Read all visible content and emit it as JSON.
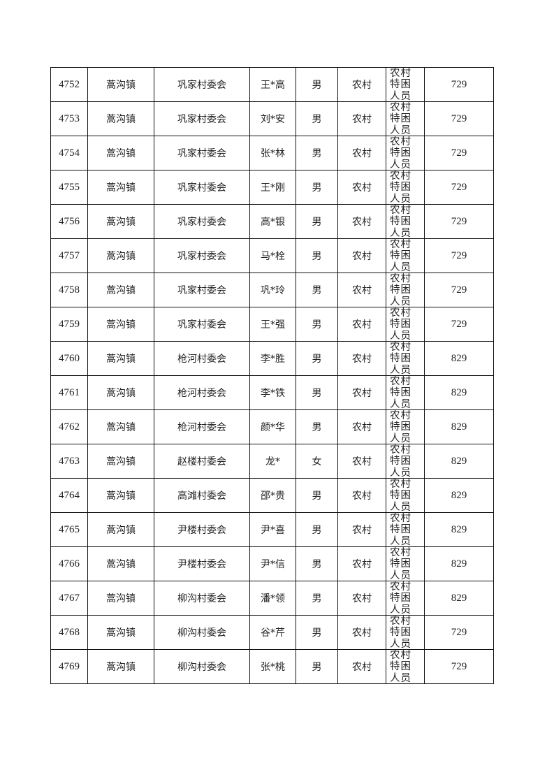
{
  "rows": [
    {
      "id": "4752",
      "town": "蒿沟镇",
      "village": "巩家村委会",
      "name": "王*高",
      "gender": "男",
      "area": "农村",
      "category": "农村特困人员分散供养",
      "amount": "729"
    },
    {
      "id": "4753",
      "town": "蒿沟镇",
      "village": "巩家村委会",
      "name": "刘*安",
      "gender": "男",
      "area": "农村",
      "category": "农村特困人员分散供养",
      "amount": "729"
    },
    {
      "id": "4754",
      "town": "蒿沟镇",
      "village": "巩家村委会",
      "name": "张*林",
      "gender": "男",
      "area": "农村",
      "category": "农村特困人员分散供养",
      "amount": "729"
    },
    {
      "id": "4755",
      "town": "蒿沟镇",
      "village": "巩家村委会",
      "name": "王*刚",
      "gender": "男",
      "area": "农村",
      "category": "农村特困人员分散供养",
      "amount": "729"
    },
    {
      "id": "4756",
      "town": "蒿沟镇",
      "village": "巩家村委会",
      "name": "高*银",
      "gender": "男",
      "area": "农村",
      "category": "农村特困人员分散供养",
      "amount": "729"
    },
    {
      "id": "4757",
      "town": "蒿沟镇",
      "village": "巩家村委会",
      "name": "马*栓",
      "gender": "男",
      "area": "农村",
      "category": "农村特困人员分散供养",
      "amount": "729"
    },
    {
      "id": "4758",
      "town": "蒿沟镇",
      "village": "巩家村委会",
      "name": "巩*玲",
      "gender": "男",
      "area": "农村",
      "category": "农村特困人员分散供养",
      "amount": "729"
    },
    {
      "id": "4759",
      "town": "蒿沟镇",
      "village": "巩家村委会",
      "name": "王*强",
      "gender": "男",
      "area": "农村",
      "category": "农村特困人员分散供养",
      "amount": "729"
    },
    {
      "id": "4760",
      "town": "蒿沟镇",
      "village": "枪河村委会",
      "name": "李*胜",
      "gender": "男",
      "area": "农村",
      "category": "农村特困人员集中供养",
      "amount": "829"
    },
    {
      "id": "4761",
      "town": "蒿沟镇",
      "village": "枪河村委会",
      "name": "李*铁",
      "gender": "男",
      "area": "农村",
      "category": "农村特困人员集中供养",
      "amount": "829"
    },
    {
      "id": "4762",
      "town": "蒿沟镇",
      "village": "枪河村委会",
      "name": "颜*华",
      "gender": "男",
      "area": "农村",
      "category": "农村特困人员集中供养",
      "amount": "829"
    },
    {
      "id": "4763",
      "town": "蒿沟镇",
      "village": "赵楼村委会",
      "name": "龙*",
      "gender": "女",
      "area": "农村",
      "category": "农村特困人员集中供养",
      "amount": "829"
    },
    {
      "id": "4764",
      "town": "蒿沟镇",
      "village": "高滩村委会",
      "name": "邵*贵",
      "gender": "男",
      "area": "农村",
      "category": "农村特困人员集中供养",
      "amount": "829"
    },
    {
      "id": "4765",
      "town": "蒿沟镇",
      "village": "尹楼村委会",
      "name": "尹*喜",
      "gender": "男",
      "area": "农村",
      "category": "农村特困人员集中供养",
      "amount": "829"
    },
    {
      "id": "4766",
      "town": "蒿沟镇",
      "village": "尹楼村委会",
      "name": "尹*信",
      "gender": "男",
      "area": "农村",
      "category": "农村特困人员集中供养",
      "amount": "829"
    },
    {
      "id": "4767",
      "town": "蒿沟镇",
      "village": "柳沟村委会",
      "name": "潘*领",
      "gender": "男",
      "area": "农村",
      "category": "农村特困人员集中供养",
      "amount": "829"
    },
    {
      "id": "4768",
      "town": "蒿沟镇",
      "village": "柳沟村委会",
      "name": "谷*芹",
      "gender": "男",
      "area": "农村",
      "category": "农村特困人员分散供养",
      "amount": "729"
    },
    {
      "id": "4769",
      "town": "蒿沟镇",
      "village": "柳沟村委会",
      "name": "张*桃",
      "gender": "男",
      "area": "农村",
      "category": "农村特困人员分散供养",
      "amount": "729"
    }
  ]
}
